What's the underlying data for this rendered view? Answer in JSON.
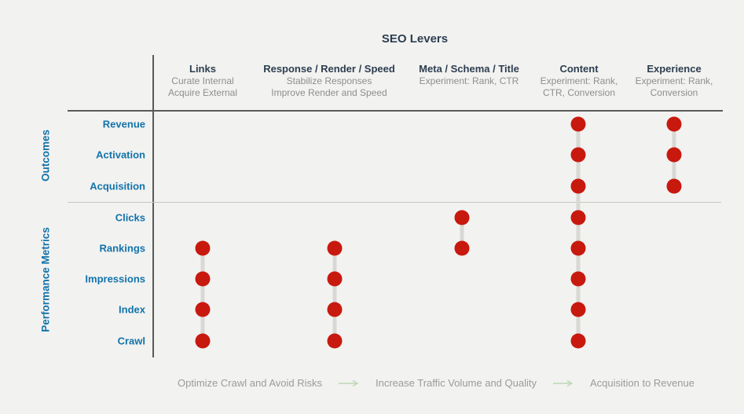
{
  "title": "SEO Levers",
  "axis": {
    "row_groups": [
      {
        "label": "Outcomes",
        "rows": [
          "Revenue",
          "Activation",
          "Acquisition"
        ]
      },
      {
        "label": "Performance Metrics",
        "rows": [
          "Clicks",
          "Rankings",
          "Impressions",
          "Index",
          "Crawl"
        ]
      }
    ]
  },
  "columns": [
    {
      "label": "Links",
      "sublines": [
        "Curate Internal",
        "Acquire External"
      ],
      "affects": [
        "Rankings",
        "Impressions",
        "Index",
        "Crawl"
      ]
    },
    {
      "label": "Response / Render / Speed",
      "sublines": [
        "Stabilize Responses",
        "Improve Render and Speed"
      ],
      "affects": [
        "Rankings",
        "Impressions",
        "Index",
        "Crawl"
      ]
    },
    {
      "label": "Meta / Schema / Title",
      "sublines": [
        "Experiment: Rank, CTR"
      ],
      "affects": [
        "Clicks",
        "Rankings"
      ]
    },
    {
      "label": "Content",
      "sublines": [
        "Experiment: Rank,",
        "CTR, Conversion"
      ],
      "affects": [
        "Revenue",
        "Activation",
        "Acquisition",
        "Clicks",
        "Rankings",
        "Impressions",
        "Index",
        "Crawl"
      ]
    },
    {
      "label": "Experience",
      "sublines": [
        "Experiment: Rank,",
        "Conversion"
      ],
      "affects": [
        "Revenue",
        "Activation",
        "Acquisition"
      ]
    }
  ],
  "footer_steps": [
    "Optimize Crawl and Avoid Risks",
    "Increase Traffic Volume and Quality",
    "Acquisition to Revenue"
  ],
  "colors": {
    "background": "#f2f2f0",
    "dot_red": "#c8190f",
    "connector_gray": "#d9d8d5",
    "label_blue": "#1273ab",
    "header_navy": "#2d3e50",
    "subtitle_gray": "#8e8e8e",
    "legend_gray": "#9b9b9b",
    "arrow_green": "#bdd7b5"
  }
}
